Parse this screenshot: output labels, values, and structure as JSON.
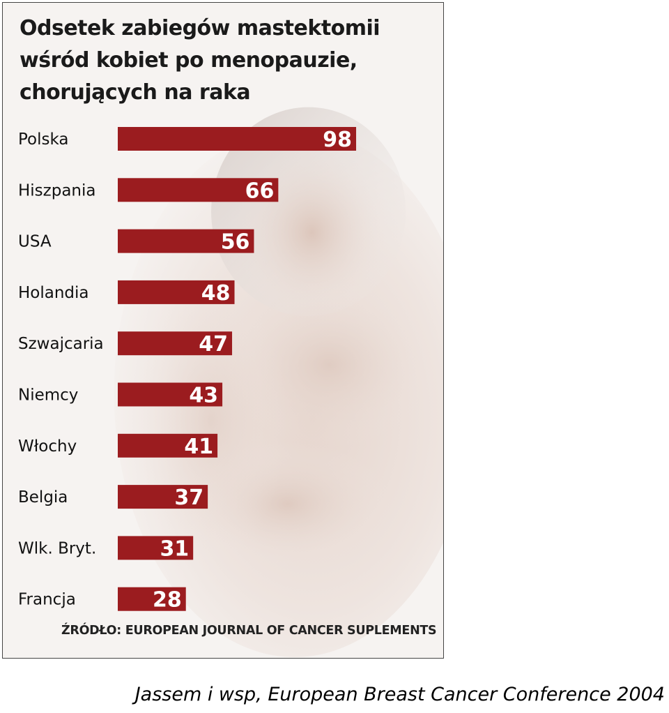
{
  "chart_data": {
    "type": "bar",
    "orientation": "horizontal",
    "title": "Odsetek zabiegów mastektomii wśród kobiet po menopauzie, chorujących na raka",
    "title_lines": [
      "Odsetek zabiegów mastektomii",
      "wśród kobiet po menopauzie,",
      "chorujących na raka"
    ],
    "categories": [
      "Polska",
      "Hiszpania",
      "USA",
      "Holandia",
      "Szwajcaria",
      "Niemcy",
      "Włochy",
      "Belgia",
      "Wlk. Bryt.",
      "Francja"
    ],
    "values": [
      98,
      66,
      56,
      48,
      47,
      43,
      41,
      37,
      31,
      28
    ],
    "xlim": [
      0,
      100
    ],
    "grid": false,
    "legend": "none",
    "bar_color": "#9b1c1f",
    "source": "ŹRÓDŁO: EUROPEAN JOURNAL OF CANCER SUPLEMENTS"
  },
  "citation": "Jassem i wsp, European Breast Cancer Conference 2004"
}
